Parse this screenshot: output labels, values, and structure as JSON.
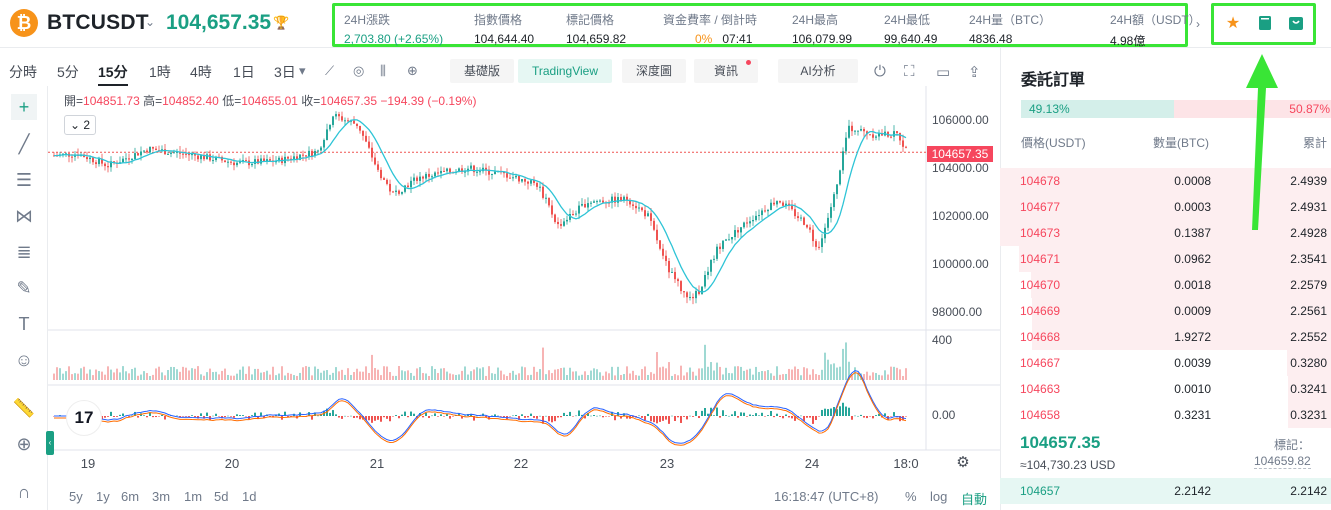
{
  "header": {
    "symbol": "BTCUSDT",
    "last_price": "104,657.35",
    "stats": [
      {
        "label": "24H漲跌",
        "value": "2,703.80 (+2.65%)"
      },
      {
        "label": "指數價格",
        "value": "104,644.40"
      },
      {
        "label": "標記價格",
        "value": "104,659.82"
      },
      {
        "label": "資金費率 / 倒計時",
        "value_rate": "0%",
        "value_time": "07:41"
      },
      {
        "label": "24H最高",
        "value": "106,079.99"
      },
      {
        "label": "24H最低",
        "value": "99,640.49"
      },
      {
        "label": "24H量（BTC）",
        "value": "4836.48"
      },
      {
        "label": "24H額（USDT）",
        "value": "4.98億"
      }
    ],
    "icons": [
      "star-icon",
      "book-icon",
      "bag-icon"
    ]
  },
  "toolbar": {
    "timeframes": [
      "分時",
      "5分",
      "15分",
      "1時",
      "4時",
      "1日",
      "3日"
    ],
    "active_timeframe": "15分",
    "tabs": [
      "基礎版",
      "TradingView",
      "深度圖",
      "資訊",
      "AI分析"
    ],
    "active_tab": "TradingView"
  },
  "chart": {
    "ohlc": {
      "open_label": "開=",
      "open": "104851.73",
      "high_label": "高=",
      "high": "104852.40",
      "low_label": "低=",
      "low": "104655.01",
      "close_label": "收=",
      "close": "104657.35",
      "change": "−194.39 (−0.19%)"
    },
    "collapse_count": "2",
    "price_tag": "104657.35",
    "y_ticks": [
      "106000.00",
      "104000.00",
      "102000.00",
      "100000.00",
      "98000.00"
    ],
    "volume_tick": "400",
    "macd_tick": "0.00",
    "x_ticks": [
      "19",
      "20",
      "21",
      "22",
      "23",
      "24",
      "18:0"
    ],
    "tv_logo": "17",
    "colors": {
      "up": "#26a69a",
      "down": "#ef5350",
      "ma": "#2ec4d6",
      "highlight": "#39e536"
    }
  },
  "bottom": {
    "ranges": [
      "5y",
      "1y",
      "6m",
      "3m",
      "1m",
      "5d",
      "1d"
    ],
    "clock": "16:18:47 (UTC+8)",
    "pct": "%",
    "log": "log",
    "auto": "自動"
  },
  "orderbook": {
    "title": "委託訂單",
    "buy_ratio": "49.13%",
    "sell_ratio": "50.87%",
    "headers": {
      "price": "價格(USDT)",
      "qty": "數量(BTC)",
      "cum": "累計"
    },
    "asks": [
      {
        "price": "104678",
        "qty": "0.0008",
        "cum": "2.4939"
      },
      {
        "price": "104677",
        "qty": "0.0003",
        "cum": "2.4931"
      },
      {
        "price": "104673",
        "qty": "0.1387",
        "cum": "2.4928"
      },
      {
        "price": "104671",
        "qty": "0.0962",
        "cum": "2.3541"
      },
      {
        "price": "104670",
        "qty": "0.0018",
        "cum": "2.2579"
      },
      {
        "price": "104669",
        "qty": "0.0009",
        "cum": "2.2561"
      },
      {
        "price": "104668",
        "qty": "1.9272",
        "cum": "2.2552"
      },
      {
        "price": "104667",
        "qty": "0.0039",
        "cum": "0.3280"
      },
      {
        "price": "104663",
        "qty": "0.0010",
        "cum": "0.3241"
      },
      {
        "price": "104658",
        "qty": "0.3231",
        "cum": "0.3231"
      }
    ],
    "mid_price": "104657.35",
    "mid_usd": "≈104,730.23  USD",
    "mark_label": "標記：",
    "mark_value": "104659.82",
    "bids": [
      {
        "price": "104657",
        "qty": "2.2142",
        "cum": "2.2142"
      }
    ]
  }
}
